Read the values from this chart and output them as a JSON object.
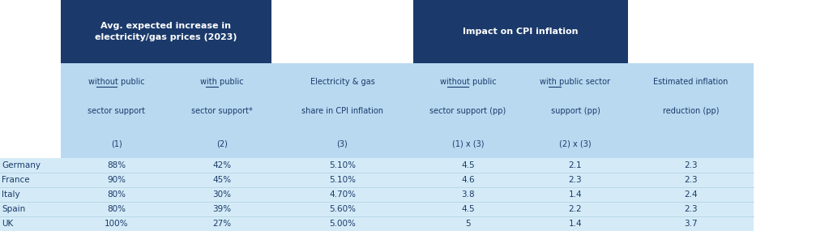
{
  "header1_text": "Avg. expected increase in\nelectricity/gas prices (2023)",
  "header2_text": "Impact on CPI inflation",
  "col_headers_line1": [
    "without public",
    "with public",
    "Electricity & gas",
    "without public",
    "with public sector",
    "Estimated inflation"
  ],
  "col_headers_line2": [
    "sector support",
    "sector support*",
    "share in CPI inflation",
    "sector support (pp)",
    "support (pp)",
    "reduction (pp)"
  ],
  "col_subheaders": [
    "(1)",
    "(2)",
    "(3)",
    "(1) x (3)",
    "(2) x (3)",
    ""
  ],
  "underline_col": [
    0,
    1,
    3,
    4
  ],
  "countries": [
    "Germany",
    "France",
    "Italy",
    "Spain",
    "UK"
  ],
  "col1": [
    "88%",
    "90%",
    "80%",
    "80%",
    "100%"
  ],
  "col2": [
    "42%",
    "45%",
    "30%",
    "39%",
    "27%"
  ],
  "col3": [
    "5.10%",
    "5.10%",
    "4.70%",
    "5.60%",
    "5.00%"
  ],
  "col4": [
    "4.5",
    "4.6",
    "3.8",
    "4.5",
    "5"
  ],
  "col5": [
    "2.1",
    "2.3",
    "1.4",
    "2.2",
    "1.4"
  ],
  "col6": [
    "2.3",
    "2.3",
    "2.4",
    "2.3",
    "3.7"
  ],
  "dark_blue": "#1b3a6b",
  "light_blue_header": "#b8d9f0",
  "light_blue_cell": "#d4ebf7",
  "white": "#ffffff",
  "text_dark": "#1b3a6b",
  "bg_color": "#ffffff",
  "sep_color": "#ffffff",
  "divider_color": "#b0cfe0",
  "fig_w": 10.07,
  "fig_h": 2.85,
  "dpi": 100
}
